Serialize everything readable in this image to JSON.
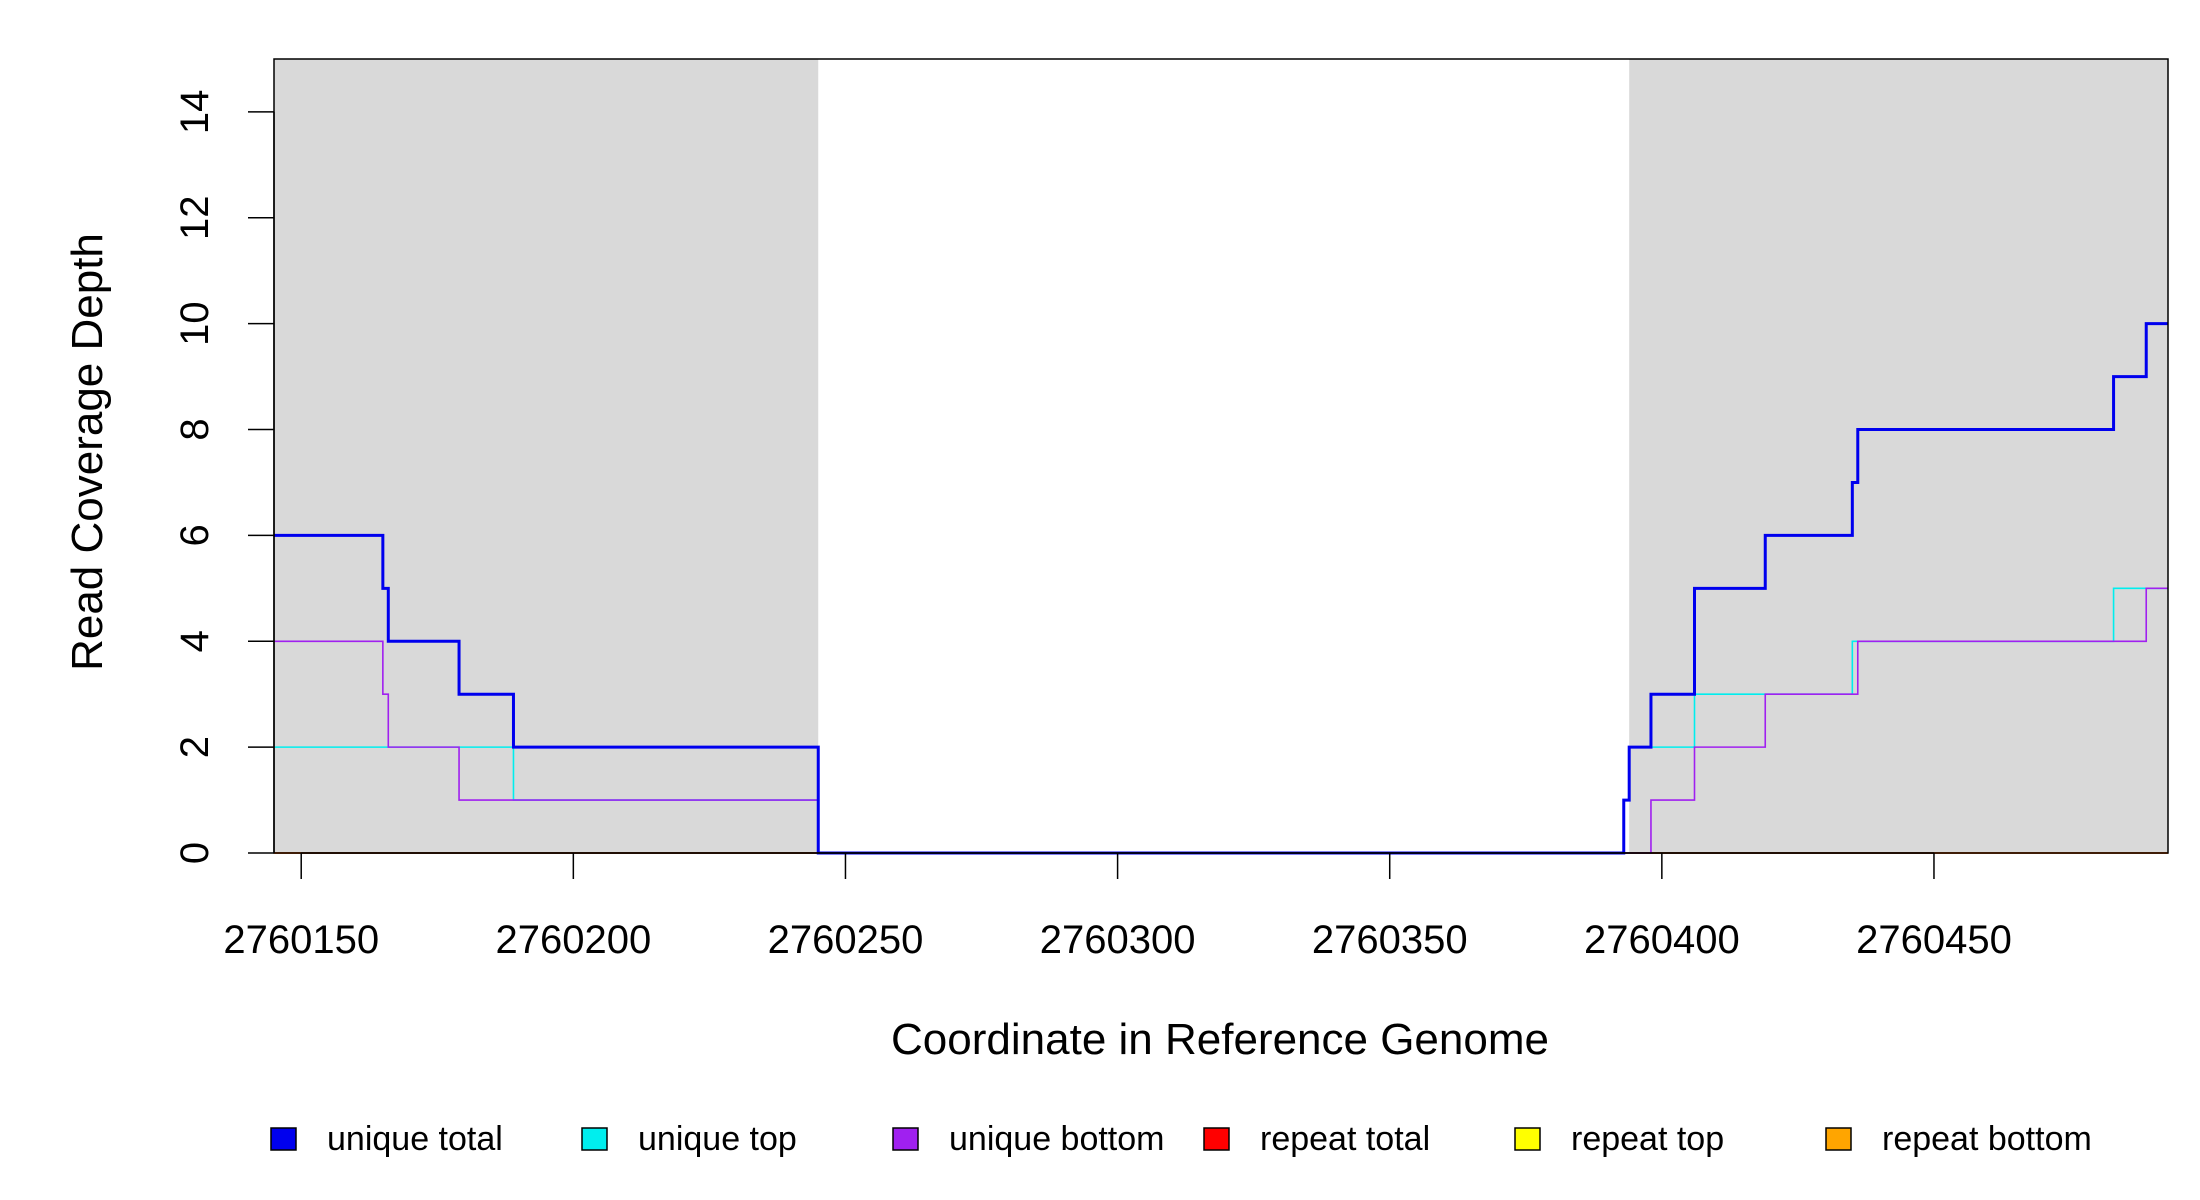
{
  "chart_data": {
    "type": "line",
    "title": "",
    "xlabel": "Coordinate in Reference Genome",
    "ylabel": "Read Coverage Depth",
    "xlim": [
      2760145,
      2760493
    ],
    "ylim": [
      0,
      15
    ],
    "x_ticks": [
      2760150,
      2760200,
      2760250,
      2760300,
      2760350,
      2760400,
      2760450
    ],
    "y_ticks": [
      0,
      2,
      4,
      6,
      8,
      10,
      12,
      14
    ],
    "shaded_regions": [
      {
        "from": 2760145,
        "to": 2760245,
        "color": "#d9d9d9"
      },
      {
        "from": 2760394,
        "to": 2760493,
        "color": "#d9d9d9"
      }
    ],
    "legend_position": "bottom",
    "series": [
      {
        "name": "unique total",
        "color": "#0000ee",
        "x": [
          2760145,
          2760165,
          2760166,
          2760179,
          2760189,
          2760245,
          2760393,
          2760394,
          2760398,
          2760406,
          2760419,
          2760435,
          2760436,
          2760483,
          2760489,
          2760493
        ],
        "y": [
          6,
          5,
          4,
          3,
          2,
          0,
          1,
          2,
          3,
          5,
          6,
          7,
          8,
          9,
          10,
          10
        ]
      },
      {
        "name": "unique top",
        "color": "#00eeee",
        "x": [
          2760145,
          2760189,
          2760245,
          2760393,
          2760394,
          2760406,
          2760435,
          2760483,
          2760493
        ],
        "y": [
          2,
          1,
          0,
          1,
          2,
          3,
          4,
          5,
          5
        ]
      },
      {
        "name": "unique bottom",
        "color": "#a020f0",
        "x": [
          2760145,
          2760165,
          2760166,
          2760179,
          2760245,
          2760398,
          2760406,
          2760419,
          2760436,
          2760489,
          2760493
        ],
        "y": [
          4,
          3,
          2,
          1,
          0,
          1,
          2,
          3,
          4,
          5,
          5
        ]
      },
      {
        "name": "repeat total",
        "color": "#ff0000",
        "x": [
          2760145,
          2760493
        ],
        "y": [
          0,
          0
        ]
      },
      {
        "name": "repeat top",
        "color": "#ffff00",
        "x": [
          2760145,
          2760493
        ],
        "y": [
          0,
          0
        ]
      },
      {
        "name": "repeat bottom",
        "color": "#ffa500",
        "x": [
          2760145,
          2760493
        ],
        "y": [
          0,
          0
        ]
      }
    ]
  }
}
